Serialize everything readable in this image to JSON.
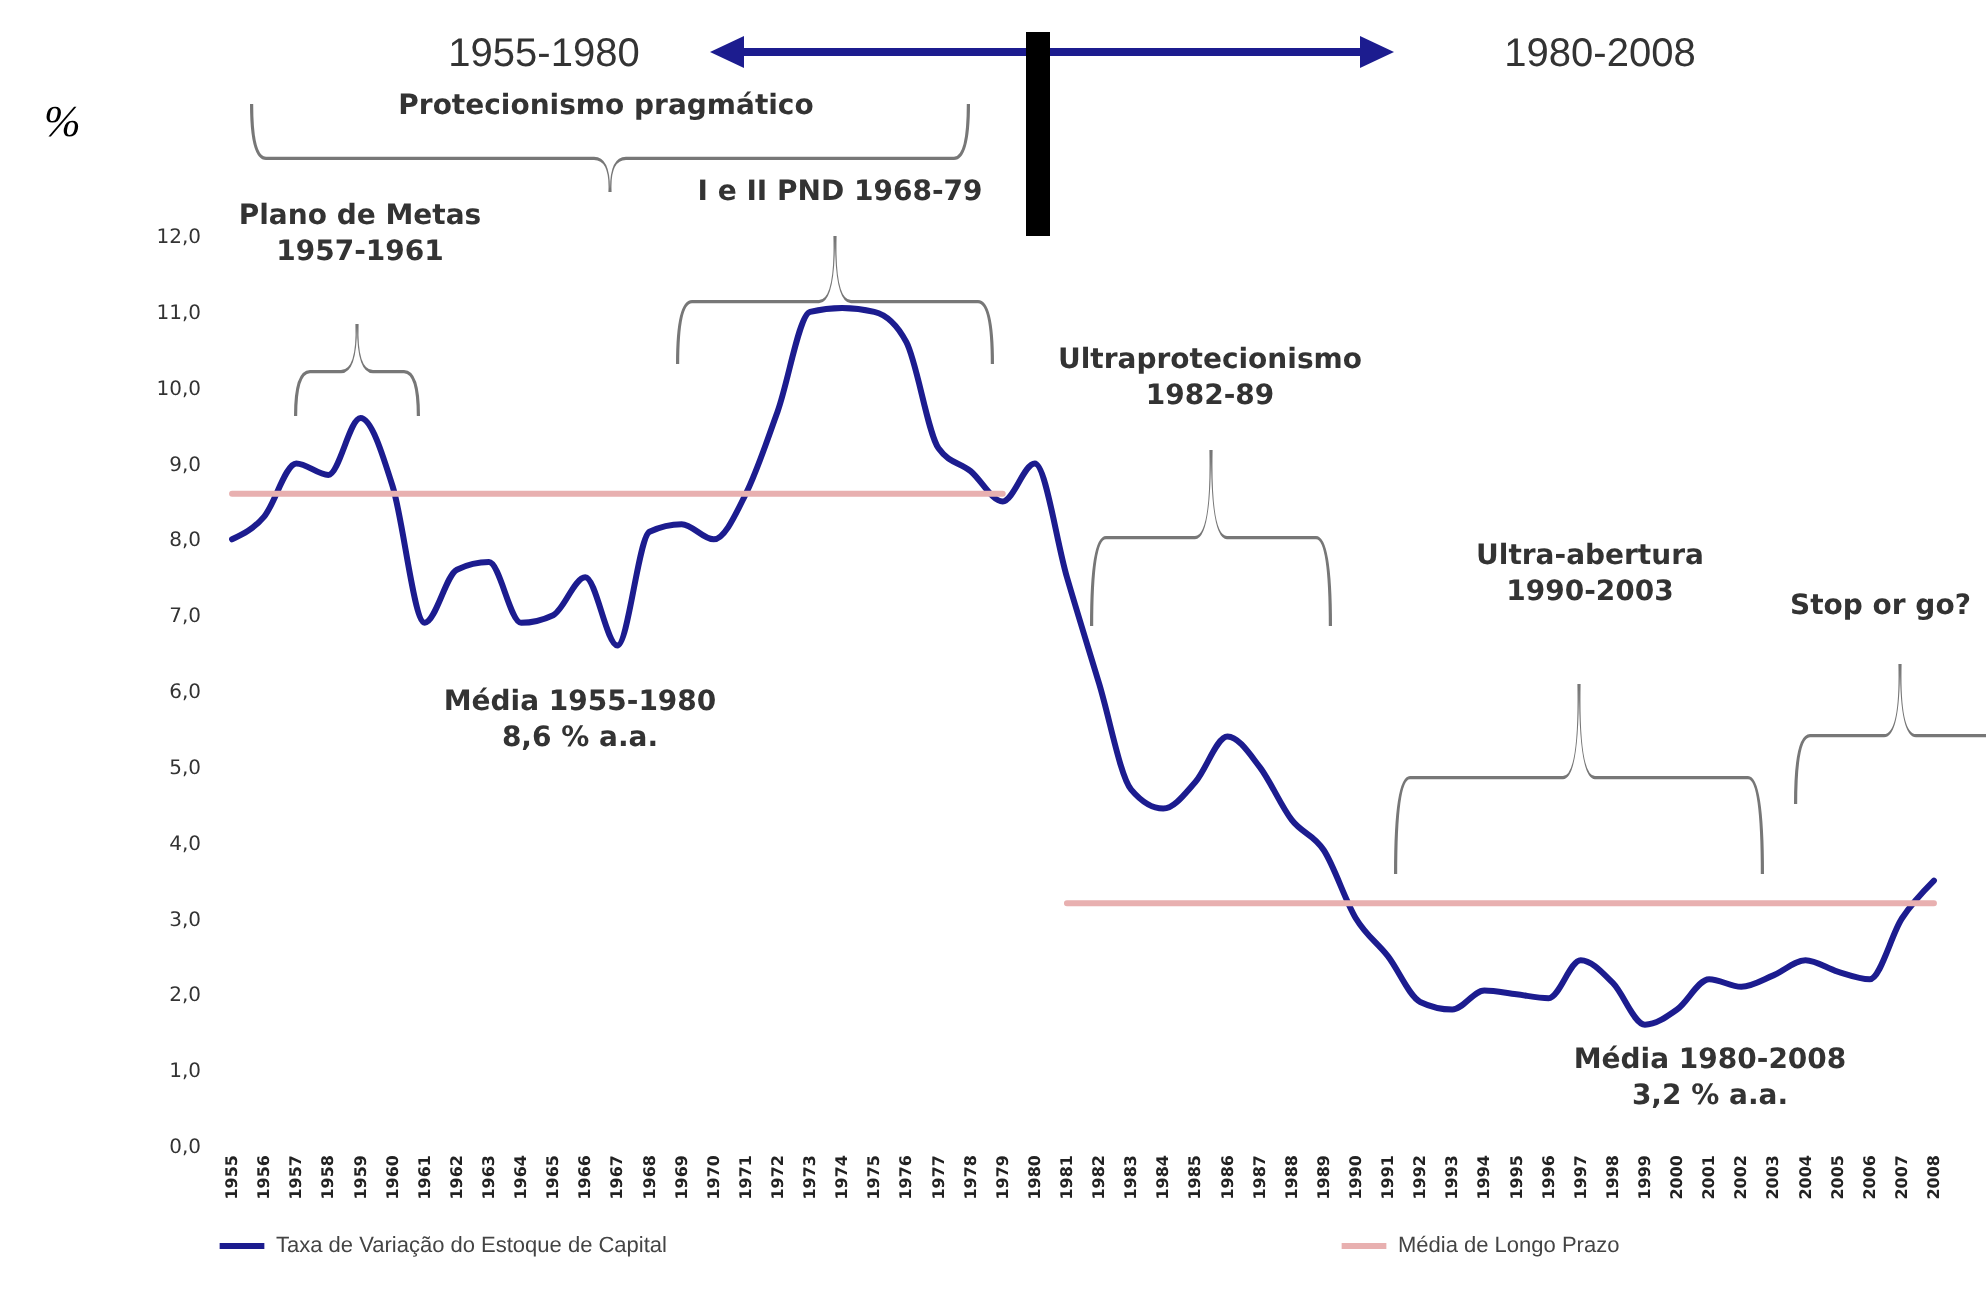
{
  "chart_data": {
    "type": "line",
    "ylabel": "%",
    "categories": [
      "1955",
      "1956",
      "1957",
      "1958",
      "1959",
      "1960",
      "1961",
      "1962",
      "1963",
      "1964",
      "1965",
      "1966",
      "1967",
      "1968",
      "1969",
      "1970",
      "1971",
      "1972",
      "1973",
      "1974",
      "1975",
      "1976",
      "1977",
      "1978",
      "1979",
      "1980",
      "1981",
      "1982",
      "1983",
      "1984",
      "1985",
      "1986",
      "1987",
      "1988",
      "1989",
      "1990",
      "1991",
      "1992",
      "1993",
      "1994",
      "1995",
      "1996",
      "1997",
      "1998",
      "1999",
      "2000",
      "2001",
      "2002",
      "2003",
      "2004",
      "2005",
      "2006",
      "2007",
      "2008"
    ],
    "series": [
      {
        "name": "Taxa de Variação do Estoque de Capital",
        "color": "#1c1c8f",
        "values": [
          8.0,
          8.3,
          9.0,
          8.85,
          9.6,
          8.7,
          6.9,
          7.6,
          7.7,
          6.9,
          7.0,
          7.5,
          6.6,
          8.1,
          8.2,
          8.0,
          8.6,
          9.7,
          11.0,
          11.05,
          11.0,
          10.6,
          9.2,
          8.9,
          8.5,
          9.0,
          7.5,
          6.1,
          4.7,
          4.45,
          4.8,
          5.4,
          5.0,
          4.3,
          3.9,
          3.0,
          2.5,
          1.9,
          1.8,
          2.05,
          2.0,
          1.95,
          2.45,
          2.15,
          1.6,
          1.8,
          2.2,
          2.1,
          2.25,
          2.45,
          2.3,
          2.2,
          3.0,
          3.5
        ]
      },
      {
        "name": "Média de Longo Prazo",
        "color": "#e8b0b0",
        "values": [
          8.6,
          8.6,
          8.6,
          8.6,
          8.6,
          8.6,
          8.6,
          8.6,
          8.6,
          8.6,
          8.6,
          8.6,
          8.6,
          8.6,
          8.6,
          8.6,
          8.6,
          8.6,
          8.6,
          8.6,
          8.6,
          8.6,
          8.6,
          8.6,
          8.6,
          null,
          3.2,
          3.2,
          3.2,
          3.2,
          3.2,
          3.2,
          3.2,
          3.2,
          3.2,
          3.2,
          3.2,
          3.2,
          3.2,
          3.2,
          3.2,
          3.2,
          3.2,
          3.2,
          3.2,
          3.2,
          3.2,
          3.2,
          3.2,
          3.2,
          3.2,
          3.2,
          3.2,
          3.2
        ]
      }
    ],
    "ylim": [
      0,
      12
    ],
    "yticks": [
      {
        "value": 0,
        "label": "0,0"
      },
      {
        "value": 1,
        "label": "1,0"
      },
      {
        "value": 2,
        "label": "2,0"
      },
      {
        "value": 3,
        "label": "3,0"
      },
      {
        "value": 4,
        "label": "4,0"
      },
      {
        "value": 5,
        "label": "5,0"
      },
      {
        "value": 6,
        "label": "6,0"
      },
      {
        "value": 7,
        "label": "7,0"
      },
      {
        "value": 8,
        "label": "8,0"
      },
      {
        "value": 9,
        "label": "9,0"
      },
      {
        "value": 10,
        "label": "10,0"
      },
      {
        "value": 11,
        "label": "11,0"
      },
      {
        "value": 12,
        "label": "12,0"
      }
    ],
    "legend": "bottom",
    "annotations": [
      "1955-1980",
      "1980-2008",
      "Protecionismo pragmático",
      "Plano de Metas\n1957-1961",
      "I e II PND 1968-79",
      "Média 1955-1980\n8,6 % a.a.",
      "Ultraprotecionismo\n1982-89",
      "Ultra-abertura\n1990-2003",
      "Stop or go?",
      "Média 1980-2008\n3,2 % a.a."
    ]
  }
}
